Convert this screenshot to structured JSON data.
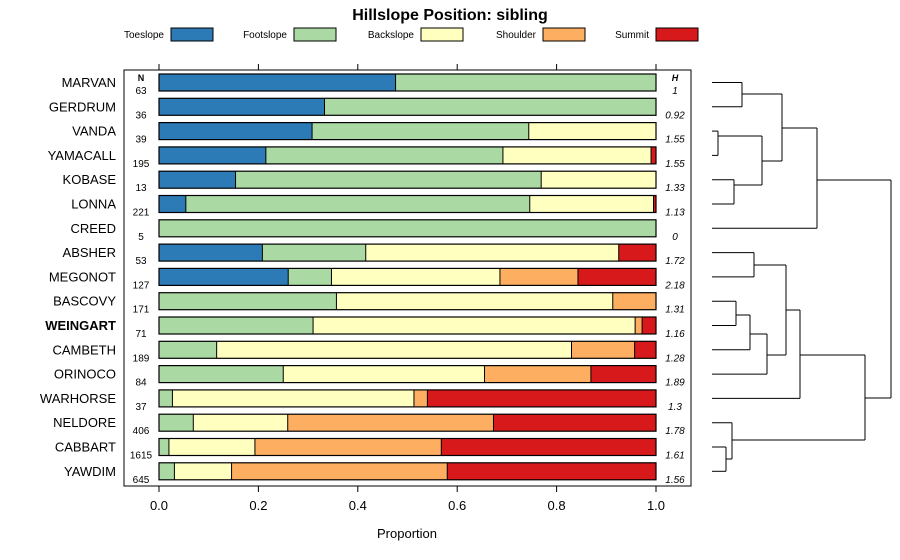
{
  "chart_data": {
    "type": "bar",
    "stacked": true,
    "orientation": "horizontal",
    "title": "Hillslope Position: sibling",
    "xlabel": "Proportion",
    "xlim": [
      0,
      1
    ],
    "xticks": [
      "0.0",
      "0.2",
      "0.4",
      "0.6",
      "0.8",
      "1.0"
    ],
    "n_header": "N",
    "h_header": "H",
    "legend": [
      {
        "name": "Toeslope",
        "color": "#2C7BB6"
      },
      {
        "name": "Footslope",
        "color": "#ABD9A4"
      },
      {
        "name": "Backslope",
        "color": "#FFFFBF"
      },
      {
        "name": "Shoulder",
        "color": "#FDAE61"
      },
      {
        "name": "Summit",
        "color": "#D7191C"
      }
    ],
    "rows": [
      {
        "name": "MARVAN",
        "n": "63",
        "h": "1",
        "bold": false,
        "values": [
          0.476,
          0.524,
          0,
          0,
          0
        ]
      },
      {
        "name": "GERDRUM",
        "n": "36",
        "h": "0.92",
        "bold": false,
        "values": [
          0.333,
          0.667,
          0,
          0,
          0
        ]
      },
      {
        "name": "VANDA",
        "n": "39",
        "h": "1.55",
        "bold": false,
        "values": [
          0.308,
          0.436,
          0.256,
          0,
          0
        ]
      },
      {
        "name": "YAMACALL",
        "n": "195",
        "h": "1.55",
        "bold": false,
        "values": [
          0.215,
          0.477,
          0.298,
          0,
          0.01
        ]
      },
      {
        "name": "KOBASE",
        "n": "13",
        "h": "1.33",
        "bold": false,
        "values": [
          0.154,
          0.615,
          0.231,
          0,
          0
        ]
      },
      {
        "name": "LONNA",
        "n": "221",
        "h": "1.13",
        "bold": false,
        "values": [
          0.054,
          0.692,
          0.249,
          0,
          0.005
        ]
      },
      {
        "name": "CREED",
        "n": "5",
        "h": "0",
        "bold": false,
        "values": [
          0,
          1,
          0,
          0,
          0
        ]
      },
      {
        "name": "ABSHER",
        "n": "53",
        "h": "1.72",
        "bold": false,
        "values": [
          0.208,
          0.208,
          0.509,
          0,
          0.075
        ]
      },
      {
        "name": "MEGONOT",
        "n": "127",
        "h": "2.18",
        "bold": false,
        "values": [
          0.26,
          0.087,
          0.339,
          0.157,
          0.157
        ]
      },
      {
        "name": "BASCOVY",
        "n": "171",
        "h": "1.31",
        "bold": false,
        "values": [
          0,
          0.357,
          0.556,
          0.087,
          0
        ]
      },
      {
        "name": "WEINGART",
        "n": "71",
        "h": "1.16",
        "bold": true,
        "values": [
          0,
          0.31,
          0.648,
          0.014,
          0.028
        ]
      },
      {
        "name": "CAMBETH",
        "n": "189",
        "h": "1.28",
        "bold": false,
        "values": [
          0,
          0.116,
          0.714,
          0.127,
          0.043
        ]
      },
      {
        "name": "ORINOCO",
        "n": "84",
        "h": "1.89",
        "bold": false,
        "values": [
          0,
          0.25,
          0.405,
          0.214,
          0.131
        ]
      },
      {
        "name": "WARHORSE",
        "n": "37",
        "h": "1.3",
        "bold": false,
        "values": [
          0,
          0.027,
          0.486,
          0.027,
          0.46
        ]
      },
      {
        "name": "NELDORE",
        "n": "406",
        "h": "1.78",
        "bold": false,
        "values": [
          0,
          0.069,
          0.19,
          0.414,
          0.327
        ]
      },
      {
        "name": "CABBART",
        "n": "1615",
        "h": "1.61",
        "bold": false,
        "values": [
          0,
          0.02,
          0.173,
          0.375,
          0.432
        ]
      },
      {
        "name": "YAWDIM",
        "n": "645",
        "h": "1.56",
        "bold": false,
        "values": [
          0,
          0.031,
          0.115,
          0.434,
          0.42
        ]
      }
    ]
  }
}
